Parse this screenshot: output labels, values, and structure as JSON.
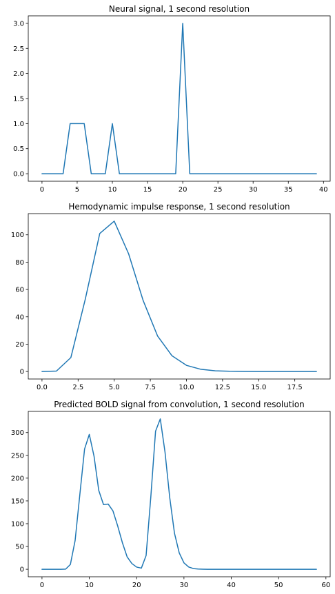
{
  "chart_data": [
    {
      "type": "line",
      "title": "Neural signal, 1 second resolution",
      "xlabel": "",
      "ylabel": "",
      "xlim": [
        -1.95,
        40.95
      ],
      "ylim": [
        -0.15,
        3.15
      ],
      "xticks": [
        0,
        5,
        10,
        15,
        20,
        25,
        30,
        35,
        40
      ],
      "yticks": [
        0.0,
        0.5,
        1.0,
        1.5,
        2.0,
        2.5,
        3.0
      ],
      "xtick_labels": [
        "0",
        "5",
        "10",
        "15",
        "20",
        "25",
        "30",
        "35",
        "40"
      ],
      "ytick_labels": [
        "0.0",
        "0.5",
        "1.0",
        "1.5",
        "2.0",
        "2.5",
        "3.0"
      ],
      "grid": false,
      "series": [
        {
          "x": [
            0,
            1,
            2,
            3,
            4,
            5,
            6,
            7,
            8,
            9,
            10,
            11,
            12,
            13,
            14,
            15,
            16,
            17,
            18,
            19,
            20,
            21,
            22,
            23,
            24,
            25,
            26,
            27,
            28,
            29,
            30,
            31,
            32,
            33,
            34,
            35,
            36,
            37,
            38,
            39
          ],
          "y": [
            0,
            0,
            0,
            0,
            1,
            1,
            1,
            0,
            0,
            0,
            1,
            0,
            0,
            0,
            0,
            0,
            0,
            0,
            0,
            0,
            3,
            0,
            0,
            0,
            0,
            0,
            0,
            0,
            0,
            0,
            0,
            0,
            0,
            0,
            0,
            0,
            0,
            0,
            0,
            0
          ],
          "color": "#1f77b4"
        }
      ]
    },
    {
      "type": "line",
      "title": "Hemodynamic impulse response, 1 second resolution",
      "xlabel": "",
      "ylabel": "",
      "xlim": [
        -0.95,
        19.95
      ],
      "ylim": [
        -5.5,
        115.5
      ],
      "xticks": [
        0.0,
        2.5,
        5.0,
        7.5,
        10.0,
        12.5,
        15.0,
        17.5
      ],
      "yticks": [
        0,
        20,
        40,
        60,
        80,
        100
      ],
      "xtick_labels": [
        "0.0",
        "2.5",
        "5.0",
        "7.5",
        "10.0",
        "12.5",
        "15.0",
        "17.5"
      ],
      "ytick_labels": [
        "0",
        "20",
        "40",
        "60",
        "80",
        "100"
      ],
      "grid": false,
      "series": [
        {
          "x": [
            0,
            1,
            2,
            3,
            4,
            5,
            6,
            7,
            8,
            9,
            10,
            11,
            12,
            13,
            14,
            15,
            16,
            17,
            18,
            19
          ],
          "y": [
            0,
            0.3,
            10.2,
            53,
            101,
            110,
            86,
            52,
            26,
            11.5,
            4.5,
            1.6,
            0.5,
            0.15,
            0.05,
            0,
            0,
            0,
            0,
            0
          ],
          "color": "#1f77b4"
        }
      ]
    },
    {
      "type": "line",
      "title": "Predicted BOLD signal from convolution, 1 second resolution",
      "xlabel": "",
      "ylabel": "",
      "xlim": [
        -2.9,
        60.9
      ],
      "ylim": [
        -16.5,
        346.5
      ],
      "xticks": [
        0,
        10,
        20,
        30,
        40,
        50,
        60
      ],
      "yticks": [
        0,
        50,
        100,
        150,
        200,
        250,
        300
      ],
      "xtick_labels": [
        "0",
        "10",
        "20",
        "30",
        "40",
        "50",
        "60"
      ],
      "ytick_labels": [
        "0",
        "50",
        "100",
        "150",
        "200",
        "250",
        "300"
      ],
      "grid": false,
      "series": [
        {
          "x": [
            0,
            1,
            2,
            3,
            4,
            5,
            6,
            7,
            8,
            9,
            10,
            11,
            12,
            13,
            14,
            15,
            16,
            17,
            18,
            19,
            20,
            21,
            22,
            23,
            24,
            25,
            26,
            27,
            28,
            29,
            30,
            31,
            32,
            33,
            34,
            35,
            36,
            37,
            38,
            39,
            40,
            41,
            42,
            43,
            44,
            45,
            46,
            47,
            48,
            49,
            50,
            51,
            52,
            53,
            54,
            55,
            56,
            57,
            58
          ],
          "y": [
            0,
            0,
            0,
            0,
            0,
            0.3,
            10.5,
            63,
            164,
            264,
            296,
            248,
            173,
            142,
            143,
            128,
            95,
            58,
            27,
            12.5,
            4.8,
            2.5,
            30,
            159,
            303,
            330,
            257,
            157,
            79,
            36,
            14,
            5,
            1.5,
            0.5,
            0.2,
            0,
            0,
            0,
            0,
            0,
            0,
            0,
            0,
            0,
            0,
            0,
            0,
            0,
            0,
            0,
            0,
            0,
            0,
            0,
            0,
            0,
            0,
            0,
            0
          ],
          "color": "#1f77b4"
        }
      ]
    }
  ]
}
